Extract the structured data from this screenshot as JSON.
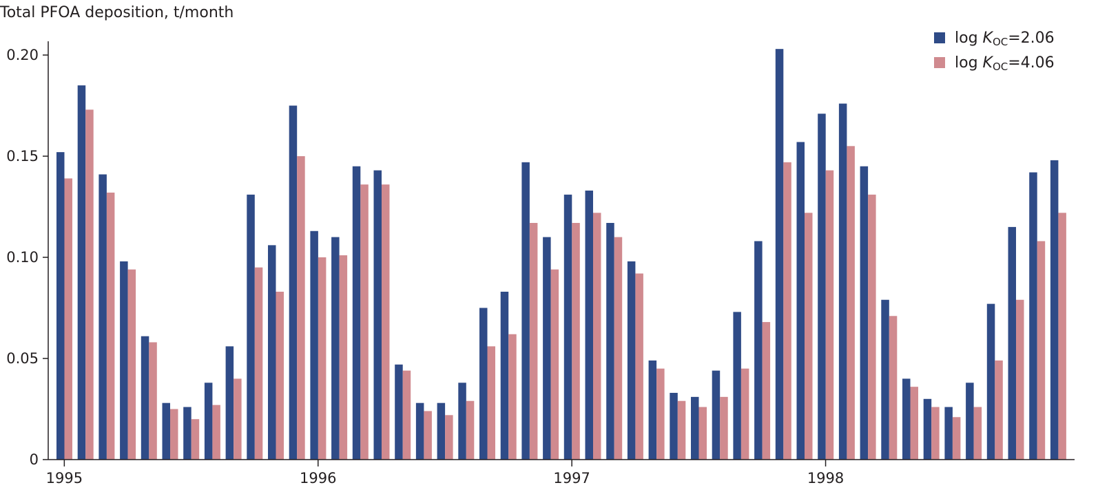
{
  "chart_data": {
    "type": "bar",
    "ylabel": "Total PFOA deposition, t/month",
    "ylim": [
      0,
      0.2
    ],
    "yticks": [
      {
        "value": 0,
        "label": "0"
      },
      {
        "value": 0.05,
        "label": "0.05"
      },
      {
        "value": 0.1,
        "label": "0.10"
      },
      {
        "value": 0.15,
        "label": "0.15"
      },
      {
        "value": 0.2,
        "label": "0.20"
      }
    ],
    "xticks": [
      {
        "month_index": 0.5,
        "label": "1995"
      },
      {
        "month_index": 12.5,
        "label": "1996"
      },
      {
        "month_index": 24.5,
        "label": "1997"
      },
      {
        "month_index": 36.5,
        "label": "1998"
      }
    ],
    "legend_position": "top-right",
    "grid": false,
    "series": [
      {
        "name": "log K_OC=2.06",
        "legend": {
          "prefix": "log ",
          "italic": "K",
          "sub": "OC",
          "suffix": "=2.06"
        },
        "color": "#2f4b87",
        "values": [
          0.152,
          0.185,
          0.141,
          0.098,
          0.061,
          0.028,
          0.026,
          0.038,
          0.056,
          0.131,
          0.106,
          0.175,
          0.113,
          0.11,
          0.145,
          0.143,
          0.047,
          0.028,
          0.028,
          0.038,
          0.075,
          0.083,
          0.147,
          0.11,
          0.131,
          0.133,
          0.117,
          0.098,
          0.049,
          0.033,
          0.031,
          0.044,
          0.073,
          0.108,
          0.203,
          0.157,
          0.171,
          0.176,
          0.145,
          0.079,
          0.04,
          0.03,
          0.026,
          0.038,
          0.077,
          0.115,
          0.142,
          0.148
        ]
      },
      {
        "name": "log K_OC=4.06",
        "legend": {
          "prefix": "log ",
          "italic": "K",
          "sub": "OC",
          "suffix": "=4.06"
        },
        "color": "#d08a8f",
        "values": [
          0.139,
          0.173,
          0.132,
          0.094,
          0.058,
          0.025,
          0.02,
          0.027,
          0.04,
          0.095,
          0.083,
          0.15,
          0.1,
          0.101,
          0.136,
          0.136,
          0.044,
          0.024,
          0.022,
          0.029,
          0.056,
          0.062,
          0.117,
          0.094,
          0.117,
          0.122,
          0.11,
          0.092,
          0.045,
          0.029,
          0.026,
          0.031,
          0.045,
          0.068,
          0.147,
          0.122,
          0.143,
          0.155,
          0.131,
          0.071,
          0.036,
          0.026,
          0.021,
          0.026,
          0.049,
          0.079,
          0.108,
          0.122
        ]
      }
    ]
  }
}
